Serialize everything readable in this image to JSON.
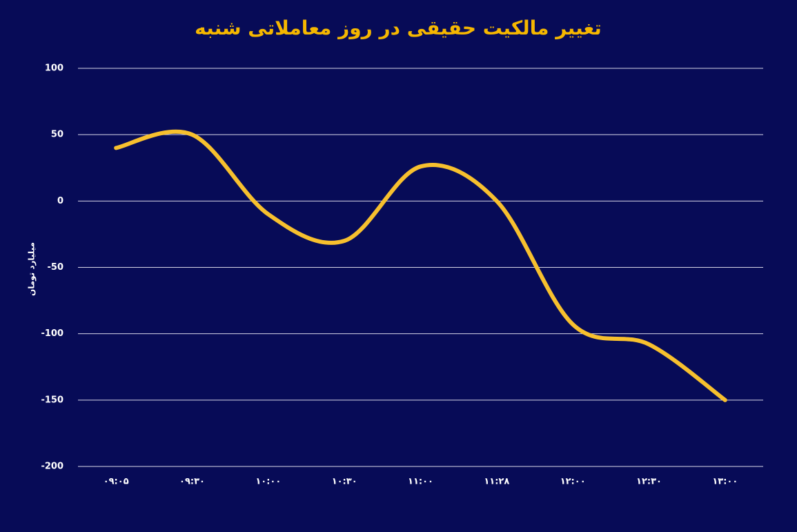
{
  "chart_data": {
    "type": "line",
    "title": "تغییر مالکیت حقیقی در روز معاملاتی شنبه",
    "y_label": "میلیارد تومان",
    "categories": [
      "۰۹:۰۵",
      "۰۹:۳۰",
      "۱۰:۰۰",
      "۱۰:۳۰",
      "۱۱:۰۰",
      "۱۱:۲۸",
      "۱۲:۰۰",
      "۱۲:۳۰",
      "۱۳:۰۰"
    ],
    "series": [
      {
        "name": "تغییر مالکیت حقیقی",
        "color": "#f7c02e",
        "values": [
          40,
          50,
          -10,
          -30,
          26,
          0,
          -93,
          -108,
          -150
        ]
      }
    ],
    "ylim": [
      -200,
      100
    ],
    "yticks": [
      100,
      50,
      0,
      -50,
      -100,
      -150,
      -200
    ],
    "grid": true,
    "smooth": true
  }
}
